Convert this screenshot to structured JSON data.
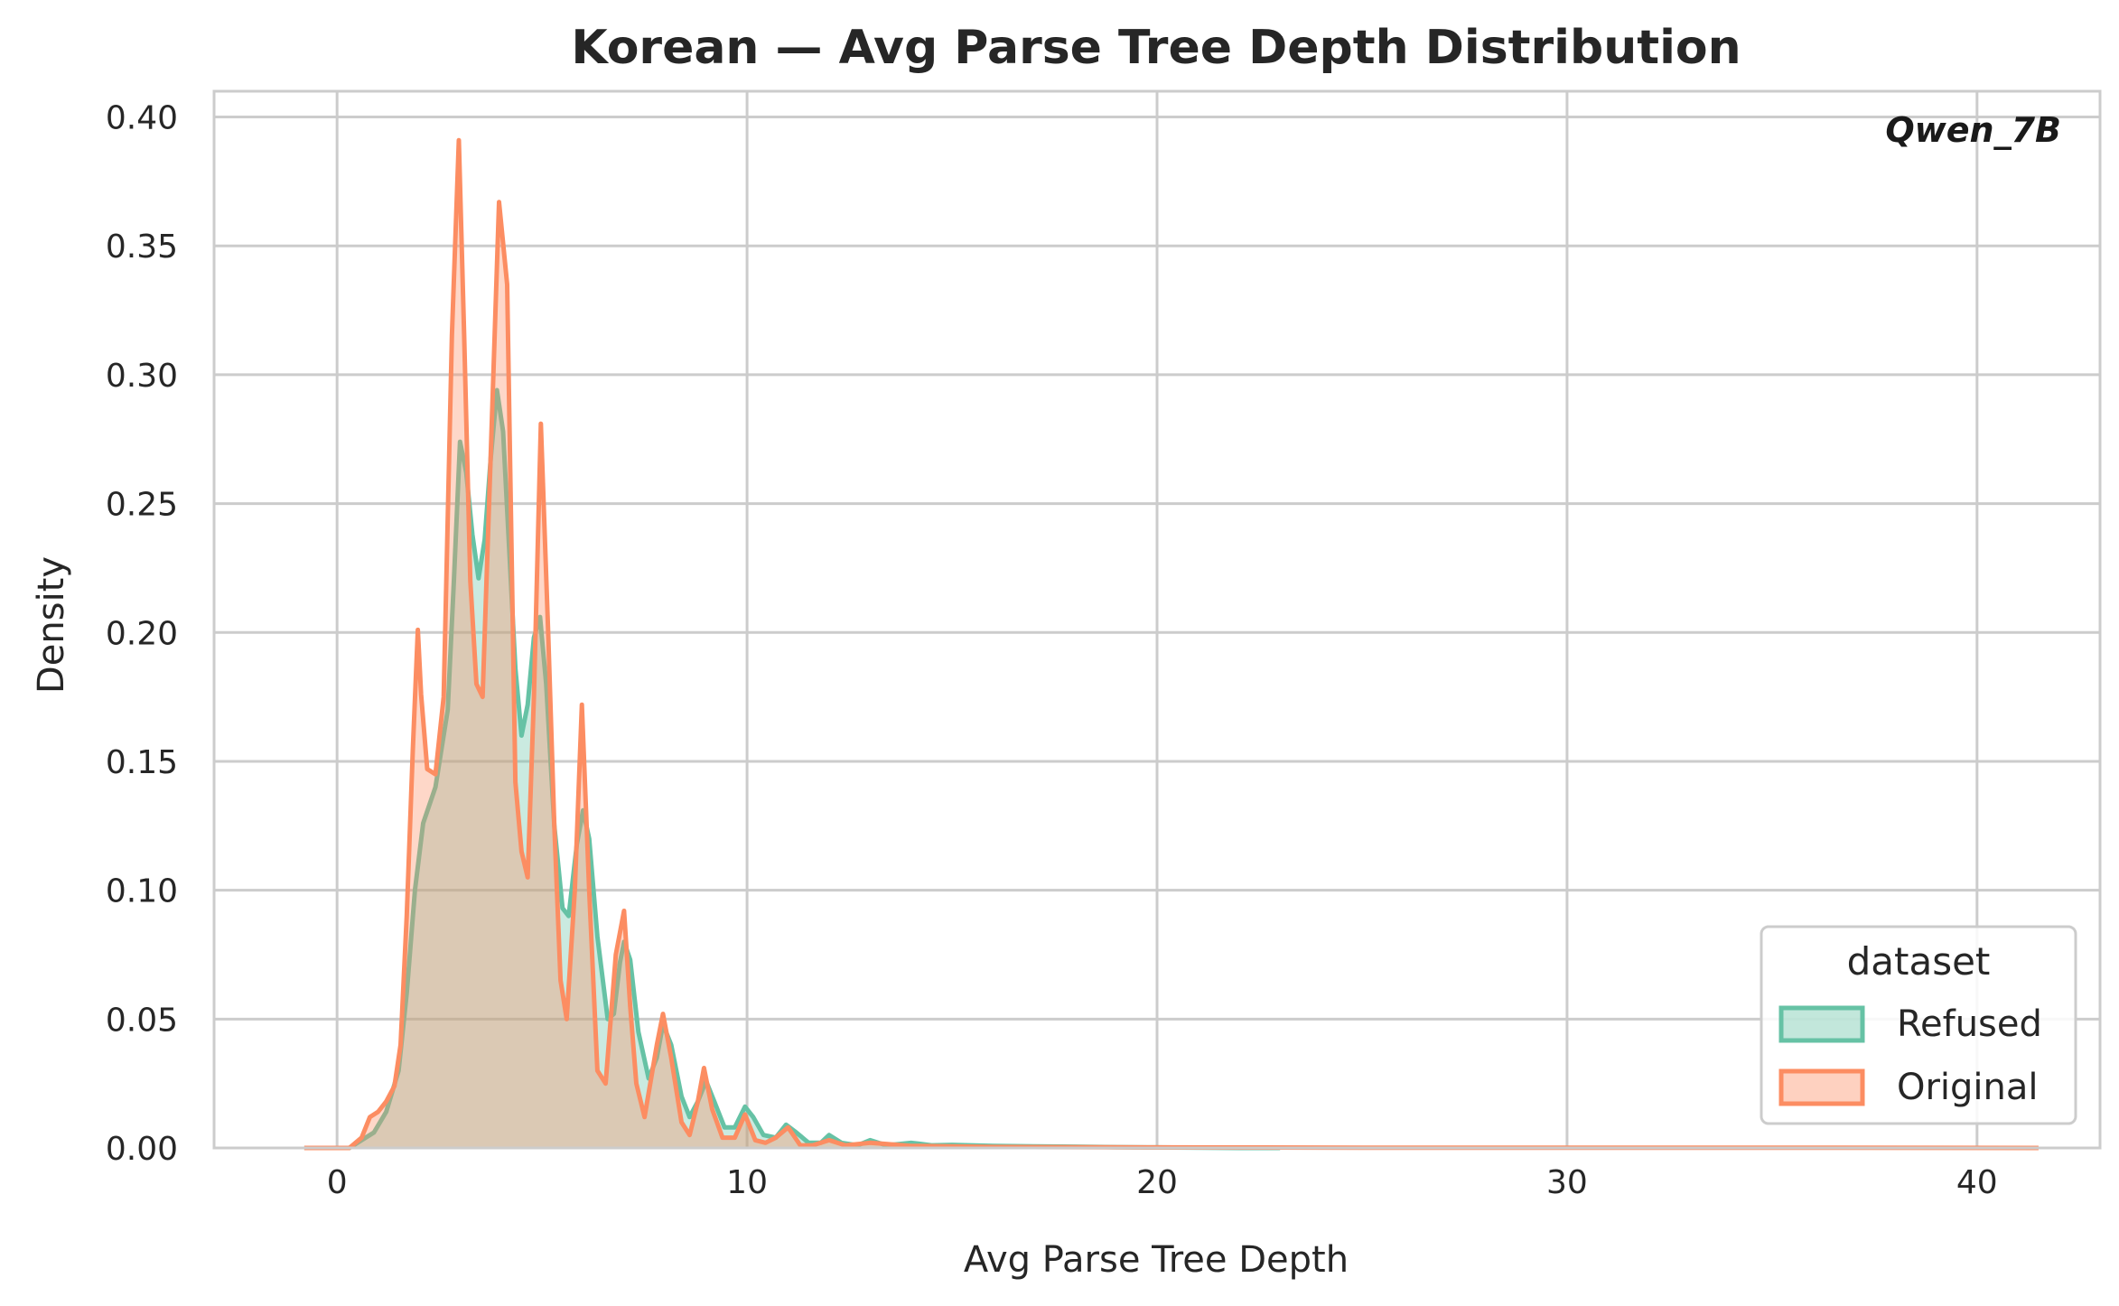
{
  "chart_data": {
    "type": "area",
    "title": "Korean — Avg Parse Tree Depth Distribution",
    "xlabel": "Avg Parse Tree Depth",
    "ylabel": "Density",
    "annotation": "Qwen_7B",
    "xlim": [
      -3,
      43
    ],
    "ylim": [
      0,
      0.41
    ],
    "x_ticks": [
      0,
      10,
      20,
      30,
      40
    ],
    "y_ticks": [
      0.0,
      0.05,
      0.1,
      0.15,
      0.2,
      0.25,
      0.3,
      0.35,
      0.4
    ],
    "x_tick_labels": [
      "0",
      "10",
      "20",
      "30",
      "40"
    ],
    "y_tick_labels": [
      "0.00",
      "0.05",
      "0.10",
      "0.15",
      "0.20",
      "0.25",
      "0.30",
      "0.35",
      "0.40"
    ],
    "grid": true,
    "legend": {
      "title": "dataset",
      "placement": "bottom-right",
      "entries": [
        "Refused",
        "Original"
      ]
    },
    "series": [
      {
        "name": "Refused",
        "color": "#66c2a5",
        "points": [
          [
            -0.8,
            0.0
          ],
          [
            0.3,
            0.0
          ],
          [
            0.6,
            0.003
          ],
          [
            0.9,
            0.006
          ],
          [
            1.2,
            0.014
          ],
          [
            1.5,
            0.03
          ],
          [
            1.7,
            0.06
          ],
          [
            1.9,
            0.1
          ],
          [
            2.1,
            0.126
          ],
          [
            2.4,
            0.14
          ],
          [
            2.7,
            0.17
          ],
          [
            2.85,
            0.22
          ],
          [
            3.0,
            0.274
          ],
          [
            3.15,
            0.262
          ],
          [
            3.3,
            0.238
          ],
          [
            3.45,
            0.221
          ],
          [
            3.6,
            0.236
          ],
          [
            3.75,
            0.268
          ],
          [
            3.9,
            0.294
          ],
          [
            4.05,
            0.278
          ],
          [
            4.2,
            0.232
          ],
          [
            4.35,
            0.186
          ],
          [
            4.5,
            0.16
          ],
          [
            4.65,
            0.172
          ],
          [
            4.8,
            0.198
          ],
          [
            4.95,
            0.206
          ],
          [
            5.1,
            0.18
          ],
          [
            5.3,
            0.125
          ],
          [
            5.5,
            0.093
          ],
          [
            5.65,
            0.09
          ],
          [
            5.85,
            0.118
          ],
          [
            6.0,
            0.131
          ],
          [
            6.15,
            0.12
          ],
          [
            6.35,
            0.082
          ],
          [
            6.6,
            0.05
          ],
          [
            6.75,
            0.052
          ],
          [
            6.9,
            0.072
          ],
          [
            7.0,
            0.08
          ],
          [
            7.15,
            0.073
          ],
          [
            7.35,
            0.045
          ],
          [
            7.6,
            0.027
          ],
          [
            7.8,
            0.035
          ],
          [
            7.95,
            0.048
          ],
          [
            8.15,
            0.04
          ],
          [
            8.4,
            0.02
          ],
          [
            8.6,
            0.012
          ],
          [
            8.8,
            0.018
          ],
          [
            9.0,
            0.026
          ],
          [
            9.2,
            0.018
          ],
          [
            9.45,
            0.008
          ],
          [
            9.7,
            0.008
          ],
          [
            9.95,
            0.016
          ],
          [
            10.15,
            0.012
          ],
          [
            10.4,
            0.005
          ],
          [
            10.7,
            0.004
          ],
          [
            10.95,
            0.009
          ],
          [
            11.2,
            0.006
          ],
          [
            11.5,
            0.002
          ],
          [
            11.8,
            0.002
          ],
          [
            12.0,
            0.005
          ],
          [
            12.3,
            0.002
          ],
          [
            12.7,
            0.001
          ],
          [
            13.0,
            0.003
          ],
          [
            13.4,
            0.001
          ],
          [
            14.0,
            0.002
          ],
          [
            14.5,
            0.001
          ],
          [
            15.0,
            0.0012
          ],
          [
            16.0,
            0.0008
          ],
          [
            17.0,
            0.0006
          ],
          [
            18.0,
            0.0005
          ],
          [
            19.0,
            0.0003
          ],
          [
            20.0,
            0.0002
          ],
          [
            22.0,
            0.0
          ],
          [
            23.0,
            0.0
          ]
        ]
      },
      {
        "name": "Original",
        "color": "#fc8d62",
        "points": [
          [
            -0.8,
            0.0
          ],
          [
            0.3,
            0.0
          ],
          [
            0.6,
            0.004
          ],
          [
            0.8,
            0.012
          ],
          [
            1.0,
            0.014
          ],
          [
            1.2,
            0.018
          ],
          [
            1.4,
            0.024
          ],
          [
            1.55,
            0.04
          ],
          [
            1.7,
            0.09
          ],
          [
            1.85,
            0.155
          ],
          [
            1.97,
            0.201
          ],
          [
            2.05,
            0.176
          ],
          [
            2.2,
            0.147
          ],
          [
            2.4,
            0.145
          ],
          [
            2.6,
            0.175
          ],
          [
            2.8,
            0.315
          ],
          [
            2.97,
            0.391
          ],
          [
            3.1,
            0.315
          ],
          [
            3.25,
            0.22
          ],
          [
            3.4,
            0.18
          ],
          [
            3.55,
            0.175
          ],
          [
            3.75,
            0.27
          ],
          [
            3.95,
            0.367
          ],
          [
            4.15,
            0.335
          ],
          [
            4.35,
            0.142
          ],
          [
            4.5,
            0.115
          ],
          [
            4.65,
            0.105
          ],
          [
            4.8,
            0.175
          ],
          [
            4.97,
            0.281
          ],
          [
            5.15,
            0.2
          ],
          [
            5.3,
            0.125
          ],
          [
            5.45,
            0.065
          ],
          [
            5.6,
            0.05
          ],
          [
            5.8,
            0.1
          ],
          [
            5.97,
            0.172
          ],
          [
            6.15,
            0.1
          ],
          [
            6.35,
            0.03
          ],
          [
            6.55,
            0.025
          ],
          [
            6.8,
            0.075
          ],
          [
            7.0,
            0.092
          ],
          [
            7.15,
            0.055
          ],
          [
            7.3,
            0.025
          ],
          [
            7.5,
            0.012
          ],
          [
            7.8,
            0.04
          ],
          [
            7.95,
            0.052
          ],
          [
            8.15,
            0.035
          ],
          [
            8.4,
            0.01
          ],
          [
            8.6,
            0.005
          ],
          [
            8.8,
            0.018
          ],
          [
            8.95,
            0.031
          ],
          [
            9.15,
            0.015
          ],
          [
            9.4,
            0.004
          ],
          [
            9.7,
            0.004
          ],
          [
            9.95,
            0.013
          ],
          [
            10.2,
            0.003
          ],
          [
            10.45,
            0.002
          ],
          [
            10.7,
            0.004
          ],
          [
            11.0,
            0.008
          ],
          [
            11.3,
            0.001
          ],
          [
            11.6,
            0.001
          ],
          [
            12.0,
            0.003
          ],
          [
            12.4,
            0.001
          ],
          [
            13.0,
            0.002
          ],
          [
            14.0,
            0.0008
          ],
          [
            16.0,
            0.0004
          ],
          [
            20.0,
            0.0002
          ],
          [
            25.0,
            0.0001
          ],
          [
            30.0,
            0.0001
          ],
          [
            35.0,
            0.0001
          ],
          [
            41.5,
            0.0
          ]
        ]
      }
    ]
  }
}
